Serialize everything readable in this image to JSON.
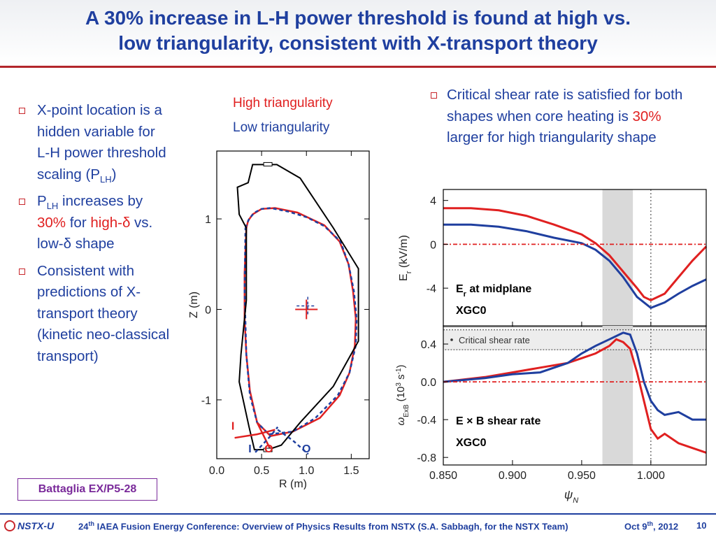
{
  "slide": {
    "title_line1": "A 30% increase in L-H power threshold is found at high vs.",
    "title_line2": "low triangularity, consistent with X-transport theory",
    "left_bullets": {
      "b1_text": "X-point location is a hidden variable for L-H power threshold scaling (P",
      "b1_sub": "LH",
      "b1_end": ")",
      "b2_p": "P",
      "b2_sub": "LH",
      "b2_mid": " increases by ",
      "b2_pct": "30%",
      "b2_for": " for ",
      "b2_high": "high-δ",
      "b2_end": " vs. low-δ shape",
      "b3_text": "Consistent with predictions of X-transport theory (kinetic neo-classical transport)"
    },
    "right_bullet": {
      "pre": "Critical shear rate is satisfied for both shapes when core heating is ",
      "pct": "30%",
      "post": " larger for high triangularity shape"
    },
    "legend_high": "High triangularity",
    "legend_low": "Low triangularity",
    "reference": "Battaglia EX/P5-28",
    "footer": {
      "logo": "NSTX-U",
      "conf_num": "24",
      "conf_sup": "th",
      "conf_text": " IAEA Fusion Energy Conference: Overview of Physics Results from NSTX (S.A. Sabbagh, for the NSTX Team)",
      "date_pre": "Oct 9",
      "date_sup": "th",
      "date_post": ", 2012",
      "page": "10"
    }
  },
  "colors": {
    "title": "#1f3f9f",
    "accent_red": "#e02020",
    "high": "#e02020",
    "low": "#1f3f9f",
    "rule": "#b3262b",
    "ref_box": "#7a2a9a"
  },
  "chart_data": [
    {
      "type": "line",
      "xlabel": "R (m)",
      "ylabel": "Z (m)",
      "xlim": [
        0.0,
        1.7
      ],
      "ylim": [
        -1.65,
        1.75
      ],
      "x_ticks": [
        "0.0",
        "0.5",
        "1.0",
        "1.5"
      ],
      "y_ticks": [
        "1",
        "0",
        "-1"
      ],
      "series": [
        {
          "name": "High triangularity",
          "color": "#e02020",
          "x": [
            0.33,
            0.35,
            0.4,
            0.5,
            0.65,
            0.9,
            1.2,
            1.37,
            1.47,
            1.52,
            1.55,
            1.54,
            1.48,
            1.37,
            1.15,
            0.85,
            0.6,
            0.45,
            0.37,
            0.33,
            0.31,
            0.31,
            0.33
          ],
          "y": [
            0.9,
            0.98,
            1.05,
            1.11,
            1.12,
            1.07,
            0.93,
            0.75,
            0.5,
            0.2,
            -0.1,
            -0.4,
            -0.7,
            -0.95,
            -1.2,
            -1.35,
            -1.4,
            -1.25,
            -0.9,
            -0.5,
            -0.1,
            0.4,
            0.9
          ]
        },
        {
          "name": "Low triangularity",
          "color": "#1f3f9f",
          "x": [
            0.32,
            0.36,
            0.42,
            0.5,
            0.6,
            0.8,
            1.0,
            1.2,
            1.38,
            1.47,
            1.53,
            1.56,
            1.55,
            1.48,
            1.35,
            1.1,
            0.85,
            0.58,
            0.45,
            0.37,
            0.33,
            0.31,
            0.32
          ],
          "y": [
            0.9,
            1.0,
            1.07,
            1.11,
            1.12,
            1.08,
            1.02,
            0.92,
            0.75,
            0.5,
            0.2,
            -0.1,
            -0.4,
            -0.7,
            -0.95,
            -1.2,
            -1.35,
            -1.38,
            -1.25,
            -0.95,
            -0.5,
            0.2,
            0.9
          ]
        },
        {
          "name": "wall",
          "color": "#000000",
          "x": [
            0.57,
            0.67,
            0.93,
            1.3,
            1.58,
            1.58,
            1.3,
            0.93,
            0.72,
            0.57,
            0.42,
            0.36,
            0.25,
            0.27,
            0.33,
            0.33,
            0.25,
            0.23,
            0.35,
            0.4,
            0.57
          ],
          "y": [
            1.6,
            1.6,
            1.45,
            0.9,
            0.45,
            -0.35,
            -0.85,
            -1.25,
            -1.5,
            -1.55,
            -1.55,
            -1.3,
            -0.8,
            -0.5,
            0.1,
            0.9,
            1.05,
            1.35,
            1.4,
            1.6,
            1.6
          ]
        },
        {
          "name": "high divertor leg I",
          "color": "#e02020",
          "x": [
            0.2,
            0.45,
            0.65
          ],
          "y": [
            -1.42,
            -1.38,
            -1.33
          ]
        },
        {
          "name": "high divertor leg O",
          "color": "#e02020",
          "x": [
            0.45,
            0.6
          ],
          "y": [
            -1.25,
            -1.55
          ]
        },
        {
          "name": "low divertor leg I",
          "color": "#1f3f9f",
          "x": [
            0.43,
            0.6,
            0.68
          ],
          "y": [
            -1.58,
            -1.4,
            -1.3
          ]
        },
        {
          "name": "low divertor leg O",
          "color": "#1f3f9f",
          "x": [
            0.68,
            0.85,
            1.02
          ],
          "y": [
            -1.33,
            -1.45,
            -1.6
          ]
        }
      ],
      "annotations": [
        {
          "text": "I",
          "x": 0.18,
          "y": -1.33,
          "color": "#e02020"
        },
        {
          "text": "I",
          "x": 0.37,
          "y": -1.58,
          "color": "#1f3f9f"
        },
        {
          "text": "O",
          "x": 0.58,
          "y": -1.58,
          "color": "#e02020"
        },
        {
          "text": "O",
          "x": 1.0,
          "y": -1.58,
          "color": "#1f3f9f"
        }
      ]
    },
    {
      "type": "line",
      "ylabel": "E_r (kV/m)",
      "xlim": [
        0.85,
        1.04
      ],
      "ylim": [
        -7.5,
        5.0
      ],
      "y_ticks": [
        "4",
        "0",
        "-4"
      ],
      "annotation_1": "E_r at midplane",
      "annotation_2": "XGC0",
      "shaded_band": [
        0.965,
        0.987
      ],
      "dotted_vline": 1.0,
      "series": [
        {
          "name": "High triangularity",
          "color": "#e02020",
          "x": [
            0.85,
            0.87,
            0.89,
            0.91,
            0.93,
            0.95,
            0.96,
            0.97,
            0.98,
            0.99,
            0.995,
            1.0,
            1.01,
            1.02,
            1.03,
            1.04
          ],
          "y": [
            3.3,
            3.3,
            3.1,
            2.6,
            1.8,
            0.9,
            0.1,
            -1.0,
            -2.5,
            -4.0,
            -4.8,
            -5.1,
            -4.5,
            -3.0,
            -1.5,
            -0.2
          ]
        },
        {
          "name": "Low triangularity",
          "color": "#1f3f9f",
          "x": [
            0.85,
            0.87,
            0.89,
            0.91,
            0.93,
            0.95,
            0.96,
            0.97,
            0.98,
            0.99,
            1.0,
            1.01,
            1.02,
            1.03,
            1.04
          ],
          "y": [
            1.8,
            1.8,
            1.6,
            1.2,
            0.6,
            0.1,
            -0.5,
            -1.5,
            -3.0,
            -4.8,
            -5.8,
            -5.3,
            -4.5,
            -3.8,
            -3.2
          ]
        },
        {
          "name": "zero",
          "color": "#e02020",
          "x": [
            0.85,
            1.04
          ],
          "y": [
            0,
            0
          ]
        }
      ]
    },
    {
      "type": "line",
      "ylabel": "ω_ExB (10^3 s^-1)",
      "xlabel": "ψ_N",
      "xlim": [
        0.85,
        1.04
      ],
      "ylim": [
        -0.88,
        0.6
      ],
      "x_ticks": [
        "0.850",
        "0.900",
        "0.950",
        "1.000"
      ],
      "y_ticks": [
        "0.4",
        "0.0",
        "-0.4",
        "-0.8"
      ],
      "annotation_1": "E × B shear rate",
      "annotation_2": "XGC0",
      "critical_label": "Critical shear rate",
      "critical_band": [
        0.34,
        0.55
      ],
      "shaded_band": [
        0.965,
        0.987
      ],
      "dotted_vline": 1.0,
      "series": [
        {
          "name": "High triangularity",
          "color": "#e02020",
          "x": [
            0.85,
            0.88,
            0.9,
            0.92,
            0.94,
            0.95,
            0.96,
            0.97,
            0.975,
            0.98,
            0.985,
            0.99,
            0.995,
            1.0,
            1.005,
            1.01,
            1.02,
            1.03,
            1.04
          ],
          "y": [
            0.0,
            0.05,
            0.1,
            0.15,
            0.2,
            0.25,
            0.3,
            0.38,
            0.45,
            0.42,
            0.35,
            0.1,
            -0.2,
            -0.5,
            -0.6,
            -0.55,
            -0.65,
            -0.7,
            -0.75
          ]
        },
        {
          "name": "Low triangularity",
          "color": "#1f3f9f",
          "x": [
            0.85,
            0.88,
            0.9,
            0.92,
            0.94,
            0.95,
            0.96,
            0.97,
            0.98,
            0.985,
            0.99,
            0.995,
            1.0,
            1.005,
            1.01,
            1.02,
            1.03,
            1.04
          ],
          "y": [
            0.0,
            0.04,
            0.08,
            0.1,
            0.2,
            0.3,
            0.38,
            0.45,
            0.52,
            0.5,
            0.3,
            0.0,
            -0.2,
            -0.3,
            -0.35,
            -0.32,
            -0.4,
            -0.4
          ]
        },
        {
          "name": "zero",
          "color": "#e02020",
          "x": [
            0.85,
            1.04
          ],
          "y": [
            0,
            0
          ]
        }
      ]
    }
  ]
}
